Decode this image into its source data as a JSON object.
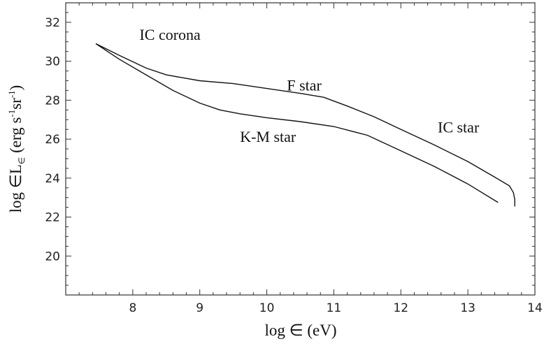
{
  "chart_data": {
    "type": "line",
    "title": "",
    "xlabel": "log ∈ (eV)",
    "ylabel_parts": {
      "main": "log ∈L",
      "sub": "∈",
      "units_open": " (erg s",
      "sup1": "-1",
      "mid": "sr",
      "sup2": "-1",
      "close": ")"
    },
    "xlim": [
      7.0,
      14.0
    ],
    "ylim": [
      18.0,
      33.0
    ],
    "xticks": [
      8,
      9,
      10,
      11,
      12,
      13,
      14
    ],
    "yticks": [
      20,
      22,
      24,
      26,
      28,
      30,
      32
    ],
    "grid": false,
    "series": [
      {
        "name": "F star",
        "x": [
          7.45,
          7.8,
          8.2,
          8.5,
          9.0,
          9.5,
          10.0,
          10.5,
          10.85,
          11.2,
          11.6,
          12.0,
          12.5,
          13.0,
          13.4,
          13.62,
          13.68,
          13.7,
          13.7
        ],
        "y": [
          30.9,
          30.3,
          29.65,
          29.3,
          29.0,
          28.85,
          28.6,
          28.35,
          28.15,
          27.7,
          27.15,
          26.5,
          25.7,
          24.85,
          24.05,
          23.6,
          23.25,
          22.9,
          22.55
        ]
      },
      {
        "name": "K-M star",
        "x": [
          7.45,
          7.8,
          8.2,
          8.6,
          9.0,
          9.3,
          9.6,
          10.0,
          10.5,
          11.0,
          11.5,
          12.0,
          12.5,
          13.0,
          13.45
        ],
        "y": [
          30.9,
          30.1,
          29.3,
          28.5,
          27.85,
          27.5,
          27.3,
          27.1,
          26.9,
          26.65,
          26.2,
          25.4,
          24.6,
          23.7,
          22.75
        ]
      }
    ],
    "annotations": [
      {
        "text": "IC corona",
        "x": 8.1,
        "y": 31.1
      },
      {
        "text": "F star",
        "x": 10.3,
        "y": 28.5
      },
      {
        "text": "IC star",
        "x": 12.55,
        "y": 26.35
      },
      {
        "text": "K-M star",
        "x": 9.6,
        "y": 25.85
      }
    ]
  }
}
